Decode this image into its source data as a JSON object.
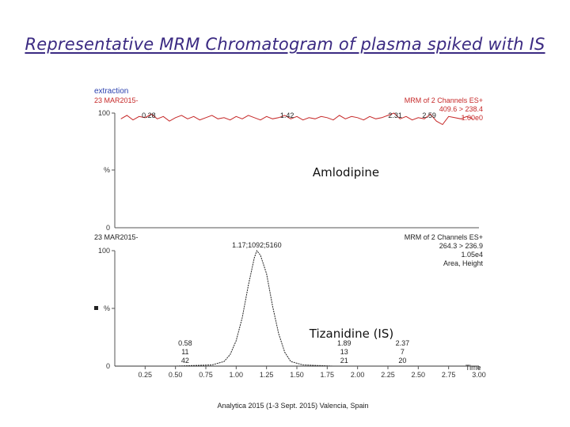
{
  "slide": {
    "title": "Representative MRM Chromatogram of plasma spiked with IS",
    "footer": "Analytica 2015 (1-3 Sept. 2015) Valencia, Spain"
  },
  "chart_data": [
    {
      "type": "line",
      "panel": "upper",
      "header_left": [
        "extraction",
        "23 MAR2015-"
      ],
      "header_right": [
        "MRM of 2 Channels ES+",
        "409.6 > 238.4",
        "1.00e0"
      ],
      "header_left_colors": [
        "#2a3fae",
        "#c62828"
      ],
      "header_right_color": "#c62828",
      "y_tick_labels": [
        "100",
        "%",
        "0"
      ],
      "ylim": [
        0,
        100
      ],
      "xlim": [
        0,
        3.0
      ],
      "compound_label": "Amlodipine",
      "peak_annotations": [
        {
          "x": 0.28,
          "text": [
            "0.28"
          ]
        },
        {
          "x": 1.42,
          "text": [
            "1.42"
          ]
        },
        {
          "x": 2.31,
          "text": [
            "2.31"
          ]
        },
        {
          "x": 2.59,
          "text": [
            "2.59"
          ]
        }
      ],
      "series": [
        {
          "trace": "noise",
          "x": [
            0.05,
            0.1,
            0.15,
            0.2,
            0.25,
            0.3,
            0.35,
            0.4,
            0.45,
            0.5,
            0.55,
            0.6,
            0.65,
            0.7,
            0.75,
            0.8,
            0.85,
            0.9,
            0.95,
            1.0,
            1.05,
            1.1,
            1.15,
            1.2,
            1.25,
            1.3,
            1.35,
            1.4,
            1.45,
            1.5,
            1.55,
            1.6,
            1.65,
            1.7,
            1.75,
            1.8,
            1.85,
            1.9,
            1.95,
            2.0,
            2.05,
            2.1,
            2.15,
            2.2,
            2.25,
            2.3,
            2.35,
            2.4,
            2.45,
            2.5,
            2.55,
            2.6,
            2.65,
            2.7,
            2.75,
            2.8,
            2.85,
            2.9,
            2.95
          ],
          "values": [
            95,
            98,
            94,
            97,
            96,
            99,
            95,
            97,
            93,
            96,
            98,
            95,
            97,
            94,
            96,
            98,
            95,
            96,
            94,
            97,
            95,
            98,
            96,
            94,
            97,
            95,
            96,
            98,
            95,
            97,
            94,
            96,
            95,
            97,
            96,
            94,
            98,
            95,
            97,
            96,
            94,
            97,
            95,
            96,
            98,
            100,
            95,
            97,
            94,
            96,
            95,
            99,
            93,
            90,
            97,
            96,
            95,
            97,
            95
          ]
        }
      ]
    },
    {
      "type": "line",
      "panel": "lower",
      "header_left": [
        "23 MAR2015-"
      ],
      "header_right": [
        "MRM of 2 Channels ES+",
        "264.3 > 236.9",
        "1.05e4",
        "Area, Height"
      ],
      "y_tick_labels": [
        "100",
        "%",
        "0"
      ],
      "ylim": [
        0,
        100
      ],
      "xlim": [
        0,
        3.0
      ],
      "compound_label": "Tizanidine (IS)",
      "xlabel": "Time",
      "x_ticks": [
        0.25,
        0.5,
        0.75,
        1.0,
        1.25,
        1.5,
        1.75,
        2.0,
        2.25,
        2.5,
        2.75,
        3.0
      ],
      "x_tick_labels": [
        "0.25",
        "0.50",
        "0.75",
        "1.00",
        "1.25",
        "1.50",
        "1.75",
        "2.00",
        "2.25",
        "2.50",
        "2.75",
        "3.00"
      ],
      "peak_annotations": [
        {
          "x": 0.58,
          "text": [
            "0.58",
            "11",
            "42"
          ]
        },
        {
          "x": 1.17,
          "text": [
            "1.17;1092;5160"
          ]
        },
        {
          "x": 1.89,
          "text": [
            "1.89",
            "13",
            "21"
          ]
        },
        {
          "x": 2.37,
          "text": [
            "2.37",
            "7",
            "20"
          ]
        }
      ],
      "series": [
        {
          "trace": "gaussian-peak",
          "x": [
            0.0,
            0.5,
            0.8,
            0.9,
            0.95,
            1.0,
            1.05,
            1.1,
            1.15,
            1.17,
            1.2,
            1.25,
            1.3,
            1.35,
            1.4,
            1.45,
            1.55,
            1.8,
            3.0
          ],
          "values": [
            0,
            0,
            1,
            4,
            10,
            22,
            42,
            70,
            94,
            100,
            96,
            80,
            52,
            28,
            12,
            4,
            1,
            0,
            0
          ]
        }
      ]
    }
  ]
}
